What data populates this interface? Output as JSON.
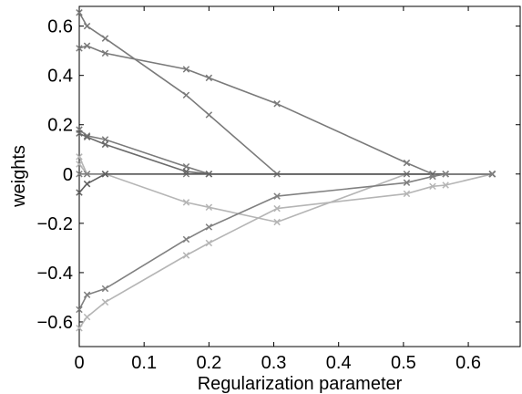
{
  "chart_data": {
    "type": "line",
    "title": "",
    "xlabel": "Regularization parameter",
    "ylabel": "weights",
    "xlim": [
      0,
      0.68
    ],
    "ylim": [
      -0.7,
      0.68
    ],
    "xticks": [
      0,
      0.1,
      0.2,
      0.3,
      0.4,
      0.5,
      0.6
    ],
    "xtick_labels": [
      "0",
      "0.1",
      "0.2",
      "0.3",
      "0.4",
      "0.5",
      "0.6"
    ],
    "yticks": [
      -0.6,
      -0.4,
      -0.2,
      0,
      0.2,
      0.4,
      0.6
    ],
    "ytick_labels": [
      "−0.6",
      "−0.4",
      "−0.2",
      "0",
      "0.2",
      "0.4",
      "0.6"
    ],
    "grid": false,
    "legend": "none",
    "marker": "x",
    "series": [
      {
        "color": "#808080",
        "x": [
          0,
          0.012,
          0.04,
          0.165,
          0.2,
          0.305,
          0.637
        ],
        "y": [
          0,
          0,
          0,
          0,
          0,
          0,
          0
        ]
      },
      {
        "color": "#7a7a7a",
        "x": [
          0,
          0.012,
          0.04,
          0.165,
          0.2,
          0.305,
          0.505,
          0.545,
          0.565,
          0.637
        ],
        "y": [
          0.655,
          0.6,
          0.55,
          0.32,
          0.24,
          0,
          0,
          0,
          0,
          0
        ]
      },
      {
        "color": "#7a7a7a",
        "x": [
          0,
          0.012,
          0.04,
          0.165,
          0.2,
          0.305,
          0.505,
          0.545,
          0.565,
          0.637
        ],
        "y": [
          0.51,
          0.52,
          0.49,
          0.425,
          0.39,
          0.285,
          0.045,
          0,
          0,
          0
        ]
      },
      {
        "color": "#7a7a7a",
        "x": [
          0,
          0.012,
          0.04,
          0.165,
          0.2,
          0.637
        ],
        "y": [
          0.18,
          0.155,
          0.14,
          0.03,
          0,
          0
        ]
      },
      {
        "color": "#6a6a6a",
        "x": [
          0,
          0.012,
          0.04,
          0.165,
          0.2,
          0.637
        ],
        "y": [
          0.165,
          0.15,
          0.12,
          0.01,
          0,
          0
        ]
      },
      {
        "color": "#5f5f5f",
        "x": [
          0,
          0.012,
          0.04,
          0.637
        ],
        "y": [
          -0.075,
          -0.04,
          0,
          0
        ]
      },
      {
        "color": "#b5b5b5",
        "x": [
          0,
          0.012,
          0.04,
          0.637
        ],
        "y": [
          0.07,
          0,
          0,
          0
        ]
      },
      {
        "color": "#b5b5b5",
        "x": [
          0,
          0.012,
          0.04,
          0.165,
          0.2,
          0.305,
          0.505,
          0.545,
          0.565,
          0.637
        ],
        "y": [
          0.04,
          0,
          0,
          -0.115,
          -0.135,
          -0.195,
          0,
          0,
          0,
          0
        ]
      },
      {
        "color": "#808080",
        "x": [
          0,
          0.012,
          0.04,
          0.165,
          0.2,
          0.305,
          0.505,
          0.545,
          0.565,
          0.637
        ],
        "y": [
          -0.55,
          -0.49,
          -0.465,
          -0.265,
          -0.215,
          -0.09,
          -0.035,
          -0.01,
          0,
          0
        ]
      },
      {
        "color": "#b5b5b5",
        "x": [
          0,
          0.012,
          0.04,
          0.165,
          0.2,
          0.305,
          0.505,
          0.545,
          0.565,
          0.637
        ],
        "y": [
          -0.625,
          -0.58,
          -0.52,
          -0.33,
          -0.28,
          -0.14,
          -0.08,
          -0.05,
          -0.045,
          0
        ]
      }
    ]
  }
}
